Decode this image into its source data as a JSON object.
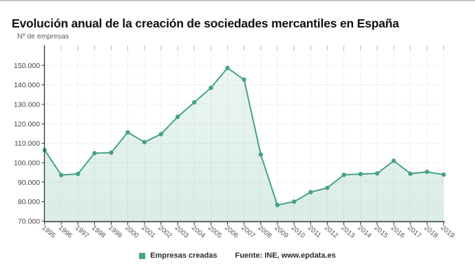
{
  "header": {
    "title": "Evolución anual de la creación de sociedades mercantiles en España"
  },
  "axis": {
    "y_unit_label": "Nº de empresas"
  },
  "legend": {
    "series_label": "Empresas creadas",
    "source_label": "Fuente: INE, www.epdata.es"
  },
  "colors": {
    "line": "#44a47e",
    "marker": "#44a47e",
    "area_top": "rgba(68,164,126,0.10)",
    "area_bottom": "rgba(68,164,126,0.20)",
    "grid": "#dcdcdc",
    "axis": "#333333",
    "top_tick": "#b8b8b8",
    "y_tick_label": "#444444",
    "x_tick_label": "#555555",
    "legend_swatch": "#44a47e",
    "title_text": "#111111"
  },
  "chart_data": {
    "type": "area",
    "title": "Evolución anual de la creación de sociedades mercantiles en España",
    "ylabel": "Nº de empresas",
    "xlabel": "",
    "categories": [
      "1995",
      "1996",
      "1997",
      "1998",
      "1999",
      "2000",
      "2001",
      "2002",
      "2003",
      "2004",
      "2005",
      "2006",
      "2007",
      "2008",
      "2009",
      "2010",
      "2011",
      "2012",
      "2013",
      "2014",
      "2015",
      "2016",
      "2017",
      "2018",
      "2019"
    ],
    "series": [
      {
        "name": "Empresas creadas",
        "values": [
          106500,
          93700,
          94300,
          104900,
          105200,
          115600,
          110600,
          114700,
          123600,
          131000,
          138500,
          148700,
          142700,
          104200,
          78300,
          80000,
          84900,
          87100,
          93800,
          94200,
          94500,
          101000,
          94400,
          95300,
          93900
        ]
      }
    ],
    "ylim": [
      70000,
      150000
    ],
    "y_tick_step": 10000,
    "grid": true,
    "legend_position": "bottom",
    "source": "Fuente: INE, www.epdata.es"
  }
}
